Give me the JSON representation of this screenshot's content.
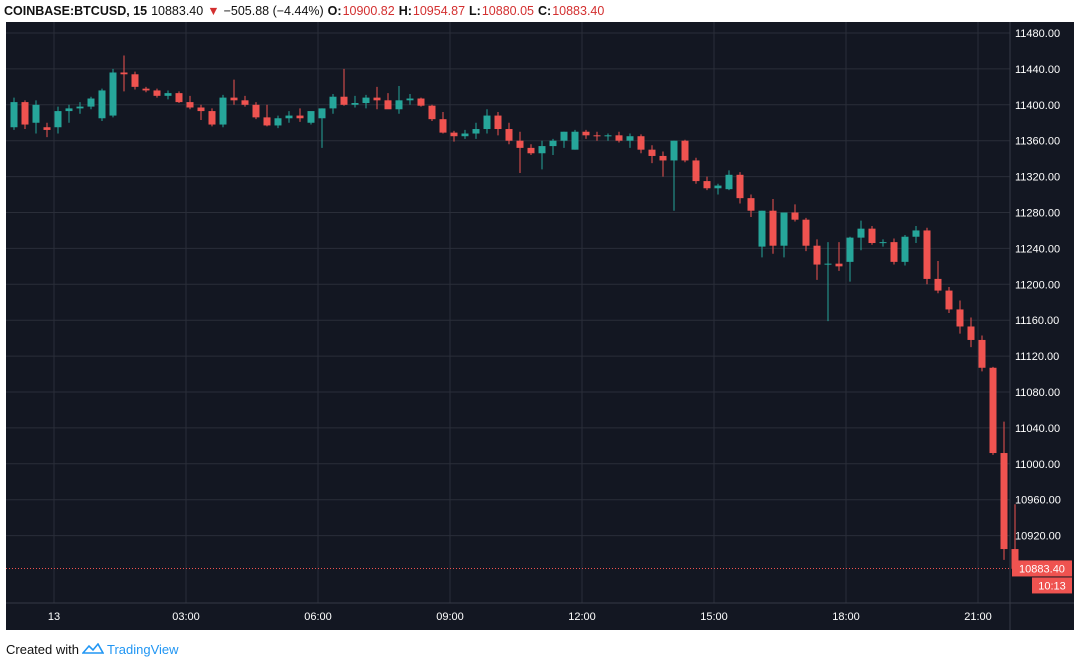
{
  "header": {
    "symbol": "COINBASE:BTCUSD, 15",
    "last": "10883.40",
    "arrow": "▼",
    "change": "−505.88 (−4.44%)",
    "o_label": "O:",
    "o_value": "10900.82",
    "h_label": "H:",
    "h_value": "10954.87",
    "l_label": "L:",
    "l_value": "10880.05",
    "c_label": "C:",
    "c_value": "10883.40"
  },
  "footer": {
    "created_with": "Created with",
    "brand": "TradingView"
  },
  "colors": {
    "background": "#131722",
    "up": "#26a69a",
    "down": "#ef5350",
    "grid": "#2a2e39",
    "axis_text": "#ffffff",
    "price_tag": "#ef5350"
  },
  "price_tag": {
    "value": "10883.40",
    "countdown": "10:13"
  },
  "chart_data": {
    "type": "candlestick",
    "title": "",
    "interval_minutes": 15,
    "start_time": "00:00",
    "xlabel": "",
    "ylabel": "",
    "ylim": [
      10840,
      11500
    ],
    "y_ticks": [
      "11480.00",
      "11440.00",
      "11400.00",
      "11360.00",
      "11320.00",
      "11280.00",
      "11240.00",
      "11200.00",
      "11160.00",
      "11120.00",
      "11080.00",
      "11040.00",
      "11000.00",
      "10960.00",
      "10920.00"
    ],
    "x_tick_labels": [
      "13",
      "03:00",
      "06:00",
      "09:00",
      "12:00",
      "15:00",
      "18:00",
      "21:00"
    ],
    "x_tick_times": [
      "00:00",
      "03:00",
      "06:00",
      "09:00",
      "12:00",
      "15:00",
      "18:00",
      "21:00"
    ],
    "last_price_line": 10883.4,
    "candles": [
      [
        11375,
        11408,
        11372,
        11403
      ],
      [
        11403,
        11405,
        11373,
        11378
      ],
      [
        11380,
        11405,
        11368,
        11400
      ],
      [
        11375,
        11380,
        11364,
        11372
      ],
      [
        11375,
        11398,
        11368,
        11393
      ],
      [
        11393,
        11400,
        11380,
        11396
      ],
      [
        11396,
        11403,
        11390,
        11398
      ],
      [
        11398,
        11409,
        11395,
        11407
      ],
      [
        11385,
        11418,
        11382,
        11416
      ],
      [
        11388,
        11440,
        11386,
        11436
      ],
      [
        11436,
        11455,
        11415,
        11434
      ],
      [
        11434,
        11437,
        11417,
        11420
      ],
      [
        11418,
        11420,
        11414,
        11416
      ],
      [
        11416,
        11418,
        11408,
        11410
      ],
      [
        11410,
        11416,
        11406,
        11413
      ],
      [
        11413,
        11415,
        11402,
        11403
      ],
      [
        11403,
        11410,
        11395,
        11397
      ],
      [
        11397,
        11400,
        11383,
        11393
      ],
      [
        11393,
        11396,
        11376,
        11378
      ],
      [
        11378,
        11411,
        11375,
        11408
      ],
      [
        11408,
        11428,
        11400,
        11405
      ],
      [
        11405,
        11410,
        11398,
        11400
      ],
      [
        11400,
        11403,
        11384,
        11386
      ],
      [
        11386,
        11400,
        11376,
        11377
      ],
      [
        11377,
        11388,
        11374,
        11385
      ],
      [
        11385,
        11393,
        11380,
        11388
      ],
      [
        11388,
        11396,
        11381,
        11385
      ],
      [
        11380,
        11392,
        11378,
        11393
      ],
      [
        11385,
        11396,
        11352,
        11396
      ],
      [
        11396,
        11412,
        11390,
        11409
      ],
      [
        11409,
        11440,
        11399,
        11400
      ],
      [
        11400,
        11410,
        11397,
        11402
      ],
      [
        11402,
        11411,
        11396,
        11408
      ],
      [
        11408,
        11420,
        11395,
        11405
      ],
      [
        11405,
        11413,
        11398,
        11395
      ],
      [
        11395,
        11421,
        11390,
        11405
      ],
      [
        11405,
        11412,
        11400,
        11407
      ],
      [
        11407,
        11408,
        11398,
        11399
      ],
      [
        11399,
        11400,
        11382,
        11384
      ],
      [
        11384,
        11392,
        11368,
        11369
      ],
      [
        11369,
        11371,
        11359,
        11365
      ],
      [
        11365,
        11372,
        11362,
        11368
      ],
      [
        11368,
        11380,
        11362,
        11373
      ],
      [
        11373,
        11395,
        11368,
        11388
      ],
      [
        11388,
        11392,
        11366,
        11373
      ],
      [
        11373,
        11380,
        11356,
        11360
      ],
      [
        11360,
        11370,
        11324,
        11352
      ],
      [
        11352,
        11356,
        11344,
        11346
      ],
      [
        11346,
        11360,
        11328,
        11354
      ],
      [
        11354,
        11362,
        11344,
        11360
      ],
      [
        11360,
        11370,
        11352,
        11370
      ],
      [
        11350,
        11372,
        11350,
        11370
      ],
      [
        11370,
        11372,
        11362,
        11366
      ],
      [
        11366,
        11370,
        11360,
        11365
      ],
      [
        11365,
        11368,
        11360,
        11366
      ],
      [
        11366,
        11370,
        11358,
        11360
      ],
      [
        11360,
        11368,
        11352,
        11365
      ],
      [
        11365,
        11367,
        11346,
        11350
      ],
      [
        11350,
        11355,
        11335,
        11343
      ],
      [
        11343,
        11348,
        11320,
        11338
      ],
      [
        11338,
        11360,
        11282,
        11360
      ],
      [
        11360,
        11361,
        11336,
        11338
      ],
      [
        11338,
        11341,
        11312,
        11315
      ],
      [
        11315,
        11320,
        11305,
        11307
      ],
      [
        11307,
        11312,
        11300,
        11310
      ],
      [
        11306,
        11327,
        11305,
        11322
      ],
      [
        11322,
        11325,
        11290,
        11296
      ],
      [
        11296,
        11300,
        11275,
        11282
      ],
      [
        11242,
        11282,
        11230,
        11282
      ],
      [
        11282,
        11295,
        11234,
        11243
      ],
      [
        11243,
        11279,
        11230,
        11280
      ],
      [
        11280,
        11289,
        11270,
        11272
      ],
      [
        11272,
        11274,
        11237,
        11243
      ],
      [
        11243,
        11250,
        11205,
        11222
      ],
      [
        11222,
        11247,
        11159,
        11223
      ],
      [
        11223,
        11247,
        11215,
        11220
      ],
      [
        11225,
        11253,
        11203,
        11252
      ],
      [
        11252,
        11271,
        11238,
        11262
      ],
      [
        11262,
        11265,
        11244,
        11246
      ],
      [
        11246,
        11250,
        11242,
        11247
      ],
      [
        11247,
        11251,
        11222,
        11225
      ],
      [
        11225,
        11255,
        11221,
        11253
      ],
      [
        11253,
        11265,
        11246,
        11260
      ],
      [
        11260,
        11263,
        11200,
        11206
      ],
      [
        11206,
        11226,
        11190,
        11193
      ],
      [
        11193,
        11197,
        11168,
        11172
      ],
      [
        11172,
        11182,
        11145,
        11153
      ],
      [
        11153,
        11163,
        11130,
        11138
      ],
      [
        11138,
        11143,
        11103,
        11107
      ],
      [
        11107,
        11108,
        11010,
        11012
      ],
      [
        11012,
        11047,
        10893,
        10905
      ],
      [
        10905,
        10955,
        10880,
        10883
      ]
    ]
  }
}
